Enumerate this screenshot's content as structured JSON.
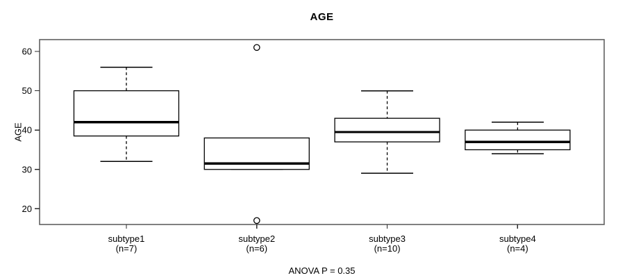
{
  "chart_data": {
    "type": "boxplot",
    "title": "AGE",
    "ylabel": "AGE",
    "xlabel": "",
    "annotation": "ANOVA P = 0.35",
    "ylim": [
      16,
      63
    ],
    "yticks": [
      20,
      30,
      40,
      50,
      60
    ],
    "grid": false,
    "groups": [
      {
        "label": "subtype1",
        "sublabel": "(n=7)",
        "n": 7,
        "whisker_low": 32,
        "q1": 38.5,
        "median": 42,
        "q3": 50,
        "whisker_high": 56,
        "outliers": []
      },
      {
        "label": "subtype2",
        "sublabel": "(n=6)",
        "n": 6,
        "whisker_low": 30,
        "q1": 30,
        "median": 31.5,
        "q3": 38,
        "whisker_high": 38,
        "outliers": [
          61,
          17
        ]
      },
      {
        "label": "subtype3",
        "sublabel": "(n=10)",
        "n": 10,
        "whisker_low": 29,
        "q1": 37,
        "median": 39.5,
        "q3": 43,
        "whisker_high": 50,
        "outliers": []
      },
      {
        "label": "subtype4",
        "sublabel": "(n=4)",
        "n": 4,
        "whisker_low": 34,
        "q1": 35,
        "median": 37,
        "q3": 40,
        "whisker_high": 42,
        "outliers": []
      }
    ],
    "colors": {
      "box_stroke": "#000000",
      "median": "#000000",
      "whisker": "#000000",
      "frame": "#616161",
      "tick": "#2b2b2b",
      "background": "#ffffff"
    }
  }
}
